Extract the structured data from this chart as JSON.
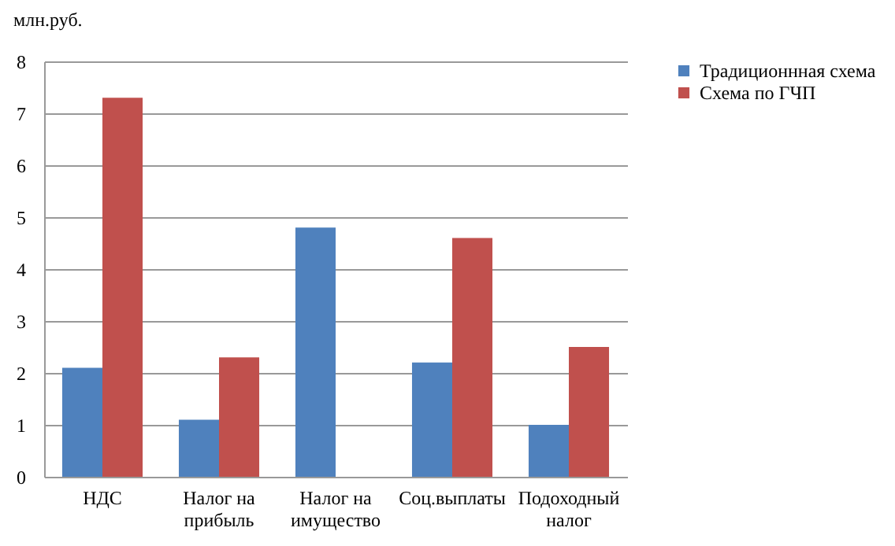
{
  "chart_data": {
    "type": "bar",
    "ylabel": "млн.руб.",
    "categories": [
      "НДС",
      "Налог на прибыль",
      "Налог на имущество",
      "Соц.выплаты",
      "Подоходный налог"
    ],
    "series": [
      {
        "name": "Традиционнная схема",
        "color": "#4f81bd",
        "values": [
          2.1,
          1.1,
          4.8,
          2.2,
          1.0
        ]
      },
      {
        "name": "Схема по ГЧП",
        "color": "#c0504d",
        "values": [
          7.3,
          2.3,
          null,
          4.6,
          2.5
        ]
      }
    ],
    "ylim": [
      0,
      8
    ],
    "yticks": [
      0,
      1,
      2,
      3,
      4,
      5,
      6,
      7,
      8
    ],
    "grid": "y",
    "legend": "right"
  }
}
